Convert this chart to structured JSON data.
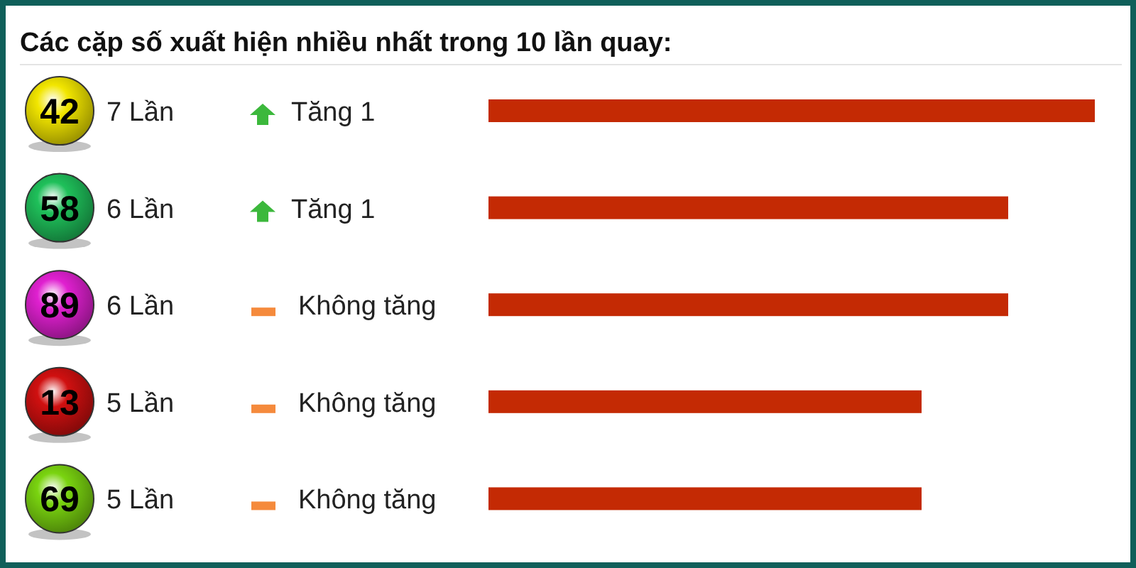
{
  "chart_data": {
    "type": "bar",
    "orientation": "horizontal",
    "title": "Các cặp số xuất hiện nhiều nhất trong 10 lần quay:",
    "categories": [
      "42",
      "58",
      "89",
      "13",
      "69"
    ],
    "values": [
      7,
      6,
      6,
      5,
      5
    ],
    "value_labels": [
      "7 Lần",
      "6 Lần",
      "6 Lần",
      "5 Lần",
      "5 Lần"
    ],
    "color": "#c42a04",
    "annotations": [
      "Tăng 1",
      "Tăng 1",
      "Không tăng",
      "Không tăng",
      "Không tăng"
    ]
  }
}
